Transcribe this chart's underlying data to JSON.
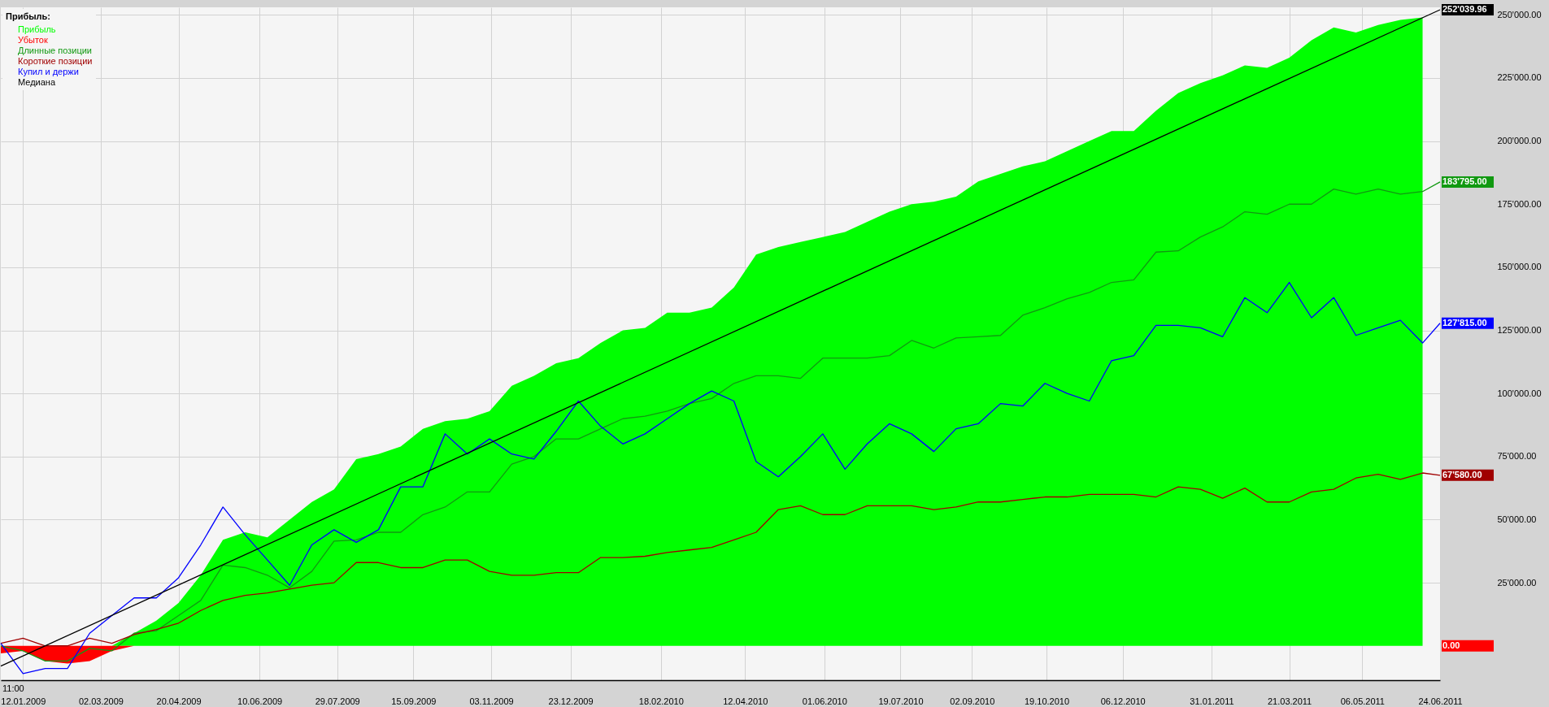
{
  "chart_data": {
    "type": "line",
    "legend_title": "Прибыль:",
    "legend": "top left",
    "grid": true,
    "annotations": [
      "11:00"
    ],
    "xlim": [
      "2008-12-29",
      "2011-06-24"
    ],
    "xticks": [
      {
        "value": "2009-01-12",
        "label": "12.01.2009"
      },
      {
        "value": "2009-03-02",
        "label": "02.03.2009"
      },
      {
        "value": "2009-04-20",
        "label": "20.04.2009"
      },
      {
        "value": "2009-06-10",
        "label": "10.06.2009"
      },
      {
        "value": "2009-07-29",
        "label": "29.07.2009"
      },
      {
        "value": "2009-09-15",
        "label": "15.09.2009"
      },
      {
        "value": "2009-11-03",
        "label": "03.11.2009"
      },
      {
        "value": "2009-12-23",
        "label": "23.12.2009"
      },
      {
        "value": "2010-02-18",
        "label": "18.02.2010"
      },
      {
        "value": "2010-04-12",
        "label": "12.04.2010"
      },
      {
        "value": "2010-06-01",
        "label": "01.06.2010"
      },
      {
        "value": "2010-07-19",
        "label": "19.07.2010"
      },
      {
        "value": "2010-09-02",
        "label": "02.09.2010"
      },
      {
        "value": "2010-10-19",
        "label": "19.10.2010"
      },
      {
        "value": "2010-12-06",
        "label": "06.12.2010"
      },
      {
        "value": "2011-01-31",
        "label": "31.01.2011"
      },
      {
        "value": "2011-03-21",
        "label": "21.03.2011"
      },
      {
        "value": "2011-05-06",
        "label": "06.05.2011"
      },
      {
        "value": "2011-06-24",
        "label": "24.06.2011"
      }
    ],
    "ylim": [
      -13600,
      253000
    ],
    "yticks": [
      {
        "value": 25000,
        "label": "25'000.00"
      },
      {
        "value": 50000,
        "label": "50'000.00"
      },
      {
        "value": 75000,
        "label": "75'000.00"
      },
      {
        "value": 100000,
        "label": "100'000.00"
      },
      {
        "value": 125000,
        "label": "125'000.00"
      },
      {
        "value": 150000,
        "label": "150'000.00"
      },
      {
        "value": 175000,
        "label": "175'000.00"
      },
      {
        "value": 200000,
        "label": "200'000.00"
      },
      {
        "value": 225000,
        "label": "225'000.00"
      },
      {
        "value": 250000,
        "label": "250'000.00"
      }
    ],
    "x": [
      "2008-12-29",
      "2009-01-12",
      "2009-01-26",
      "2009-02-09",
      "2009-02-23",
      "2009-03-09",
      "2009-03-23",
      "2009-04-06",
      "2009-04-20",
      "2009-05-04",
      "2009-05-18",
      "2009-06-01",
      "2009-06-15",
      "2009-06-29",
      "2009-07-13",
      "2009-07-27",
      "2009-08-10",
      "2009-08-24",
      "2009-09-07",
      "2009-09-21",
      "2009-10-05",
      "2009-10-19",
      "2009-11-02",
      "2009-11-16",
      "2009-11-30",
      "2009-12-14",
      "2009-12-28",
      "2010-01-11",
      "2010-01-25",
      "2010-02-08",
      "2010-02-22",
      "2010-03-08",
      "2010-03-22",
      "2010-04-05",
      "2010-04-19",
      "2010-05-03",
      "2010-05-17",
      "2010-05-31",
      "2010-06-14",
      "2010-06-28",
      "2010-07-12",
      "2010-07-26",
      "2010-08-09",
      "2010-08-23",
      "2010-09-06",
      "2010-09-20",
      "2010-10-04",
      "2010-10-18",
      "2010-11-01",
      "2010-11-15",
      "2010-11-29",
      "2010-12-13",
      "2010-12-27",
      "2011-01-10",
      "2011-01-24",
      "2011-02-07",
      "2011-02-21",
      "2011-03-07",
      "2011-03-21",
      "2011-04-04",
      "2011-04-18",
      "2011-05-02",
      "2011-05-16",
      "2011-05-30",
      "2011-06-13",
      "2011-06-24"
    ],
    "series": [
      {
        "name": "Прибыль",
        "type": "area",
        "color": "#00ff00",
        "values": [
          0,
          0,
          0,
          0,
          0,
          0,
          5000,
          10000,
          17000,
          28000,
          42000,
          45000,
          43000,
          50000,
          57000,
          62000,
          74000,
          76000,
          79000,
          86000,
          89000,
          90000,
          93000,
          103000,
          107000,
          112000,
          114000,
          120000,
          125000,
          126000,
          132000,
          132000,
          134000,
          142000,
          155000,
          158000,
          160000,
          162000,
          164000,
          168000,
          172000,
          175000,
          176000,
          178000,
          184000,
          187000,
          190000,
          192000,
          196000,
          200000,
          204000,
          204000,
          212000,
          219000,
          223000,
          226000,
          230000,
          229000,
          233000,
          240000,
          245000,
          243000,
          246000,
          248000,
          249000,
          null
        ]
      },
      {
        "name": "Убыток",
        "type": "area",
        "color": "#ff0000",
        "values": [
          -3000,
          -2000,
          -6000,
          -7000,
          -6000,
          -2000,
          0,
          0,
          0,
          0,
          0,
          0,
          0,
          0,
          0,
          0,
          0,
          0,
          0,
          0,
          0,
          0,
          0,
          0,
          0,
          0,
          0,
          0,
          0,
          0,
          0,
          0,
          0,
          0,
          0,
          0,
          0,
          0,
          0,
          0,
          0,
          0,
          0,
          0,
          0,
          0,
          0,
          0,
          0,
          0,
          0,
          0,
          0,
          0,
          0,
          0,
          0,
          0,
          0,
          0,
          0,
          0,
          0,
          0,
          0,
          0
        ],
        "value_labels": [
          null,
          null,
          null,
          null,
          null,
          null,
          null,
          null,
          null,
          null,
          null,
          null,
          null,
          null,
          null,
          null,
          null,
          null,
          null,
          null,
          null,
          null,
          null,
          null,
          null,
          null,
          null,
          null,
          null,
          null,
          null,
          null,
          null,
          null,
          null,
          null,
          null,
          null,
          null,
          null,
          null,
          null,
          null,
          null,
          null,
          null,
          null,
          null,
          null,
          null,
          null,
          null,
          null,
          null,
          null,
          null,
          null,
          null,
          null,
          null,
          null,
          null,
          null,
          null,
          null,
          "0.00"
        ]
      },
      {
        "name": "Длинные позиции",
        "color": "#119911",
        "values": [
          0,
          -2000,
          -6000,
          -6000,
          -1000,
          -2000,
          5000,
          6000,
          12000,
          18000,
          32000,
          31000,
          28000,
          23000,
          29500,
          41500,
          42000,
          45000,
          45000,
          52000,
          55000,
          61000,
          61000,
          72000,
          75000,
          82000,
          82000,
          86000,
          90000,
          91000,
          93000,
          96000,
          98000,
          104000,
          107000,
          107000,
          106000,
          114000,
          114000,
          114000,
          115000,
          121000,
          118000,
          122000,
          122500,
          123000,
          131000,
          134000,
          137500,
          140000,
          144000,
          145000,
          156000,
          156500,
          162000,
          166000,
          172000,
          171000,
          175000,
          175000,
          181000,
          179000,
          181000,
          179000,
          180000,
          183795
        ],
        "value_labels": [
          null,
          null,
          null,
          null,
          null,
          null,
          null,
          null,
          null,
          null,
          null,
          null,
          null,
          null,
          null,
          null,
          null,
          null,
          null,
          null,
          null,
          null,
          null,
          null,
          null,
          null,
          null,
          null,
          null,
          null,
          null,
          null,
          null,
          null,
          null,
          null,
          null,
          null,
          null,
          null,
          null,
          null,
          null,
          null,
          null,
          null,
          null,
          null,
          null,
          null,
          null,
          null,
          null,
          null,
          null,
          null,
          null,
          null,
          null,
          null,
          null,
          null,
          null,
          null,
          null,
          "183'795.00"
        ]
      },
      {
        "name": "Короткие позиции",
        "color": "#a00000",
        "values": [
          1000,
          3000,
          0,
          0,
          3000,
          1000,
          4500,
          6500,
          9000,
          14000,
          18000,
          20000,
          21000,
          22500,
          24000,
          25000,
          33000,
          33000,
          31000,
          31000,
          34000,
          34000,
          29500,
          28000,
          28000,
          29000,
          29000,
          35000,
          35000,
          35500,
          37000,
          38000,
          39000,
          42000,
          45000,
          54000,
          55500,
          52000,
          52000,
          55500,
          55500,
          55500,
          54000,
          55000,
          57000,
          57000,
          58000,
          59000,
          59000,
          60000,
          60000,
          60000,
          59000,
          63000,
          62000,
          58500,
          62500,
          57000,
          57000,
          61000,
          62000,
          66500,
          68000,
          66000,
          68500,
          67580
        ],
        "value_labels": [
          null,
          null,
          null,
          null,
          null,
          null,
          null,
          null,
          null,
          null,
          null,
          null,
          null,
          null,
          null,
          null,
          null,
          null,
          null,
          null,
          null,
          null,
          null,
          null,
          null,
          null,
          null,
          null,
          null,
          null,
          null,
          null,
          null,
          null,
          null,
          null,
          null,
          null,
          null,
          null,
          null,
          null,
          null,
          null,
          null,
          null,
          null,
          null,
          null,
          null,
          null,
          null,
          null,
          null,
          null,
          null,
          null,
          null,
          null,
          null,
          null,
          null,
          null,
          null,
          null,
          "67'580.00"
        ]
      },
      {
        "name": "Купил и держи",
        "color": "#0000ff",
        "values": [
          1000,
          -11000,
          -9000,
          -9000,
          5000,
          12000,
          19000,
          19000,
          27000,
          40000,
          55000,
          44000,
          34000,
          24000,
          40000,
          46000,
          41000,
          46000,
          63000,
          63000,
          84000,
          76000,
          82000,
          76000,
          74000,
          85000,
          97000,
          87000,
          80000,
          84000,
          90000,
          96000,
          101000,
          97000,
          73000,
          67000,
          75000,
          84000,
          70000,
          80000,
          88000,
          84000,
          77000,
          86000,
          88000,
          96000,
          95000,
          104000,
          100000,
          97000,
          113000,
          115000,
          127000,
          127000,
          126000,
          122500,
          138000,
          132000,
          144000,
          130000,
          138000,
          123000,
          126000,
          129000,
          120000,
          127815
        ],
        "value_labels": [
          null,
          null,
          null,
          null,
          null,
          null,
          null,
          null,
          null,
          null,
          null,
          null,
          null,
          null,
          null,
          null,
          null,
          null,
          null,
          null,
          null,
          null,
          null,
          null,
          null,
          null,
          null,
          null,
          null,
          null,
          null,
          null,
          null,
          null,
          null,
          null,
          null,
          null,
          null,
          null,
          null,
          null,
          null,
          null,
          null,
          null,
          null,
          null,
          null,
          null,
          null,
          null,
          null,
          null,
          null,
          null,
          null,
          null,
          null,
          null,
          null,
          null,
          null,
          null,
          null,
          "127'815.00"
        ]
      },
      {
        "name": "Медиана",
        "color": "#000000",
        "x": [
          "2008-12-29",
          "2011-06-24"
        ],
        "values": [
          -8000,
          252039.96
        ],
        "value_labels": [
          null,
          "252'039.96"
        ]
      }
    ]
  }
}
